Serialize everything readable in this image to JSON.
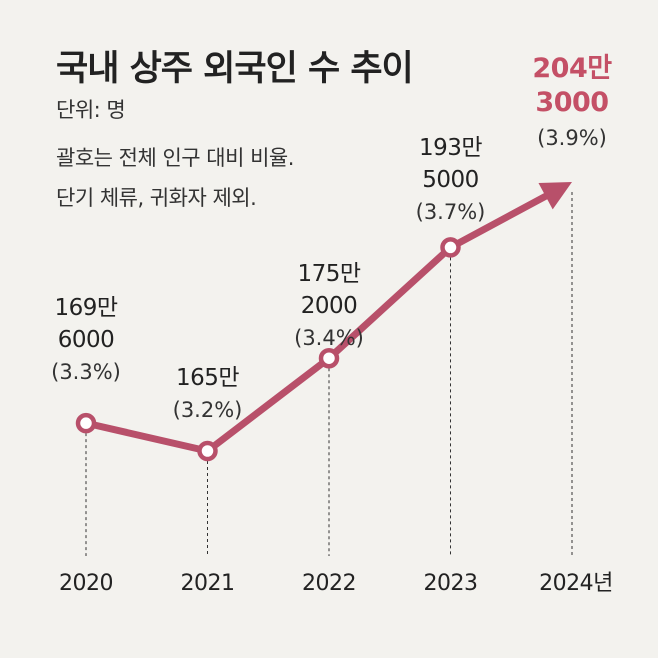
{
  "title": "국내 상주 외국인 수 추이",
  "unit": "단위: 명",
  "note1": "괄호는 전체 인구 대비 비율.",
  "note2": "단기 체류, 귀화자 제외.",
  "colors": {
    "line": "#b8506a",
    "highlight": "#c45066",
    "text": "#222222",
    "background": "#f3f2ee"
  },
  "chart_data": {
    "type": "line",
    "title": "국내 상주 외국인 수 추이",
    "ylabel": "단위: 명",
    "x": [
      "2020",
      "2021",
      "2022",
      "2023",
      "2024년"
    ],
    "series": [
      {
        "values": [
          1696000,
          1650000,
          1752000,
          1935000,
          2043000
        ]
      }
    ],
    "data_labels": [
      {
        "value": "169만 6000",
        "lines": [
          "169만",
          "6000"
        ],
        "ratio": "(3.3%)"
      },
      {
        "value": "165만",
        "lines": [
          "165만"
        ],
        "ratio": "(3.2%)"
      },
      {
        "value": "175만 2000",
        "lines": [
          "175만",
          "2000"
        ],
        "ratio": "(3.4%)"
      },
      {
        "value": "193만 5000",
        "lines": [
          "193만",
          "5000"
        ],
        "ratio": "(3.7%)"
      },
      {
        "value": "204만 3000",
        "lines": [
          "204만",
          "3000"
        ],
        "ratio": "(3.9%)"
      }
    ],
    "ylim": [
      1600000,
      2100000
    ],
    "grid": false,
    "legend": "none"
  }
}
